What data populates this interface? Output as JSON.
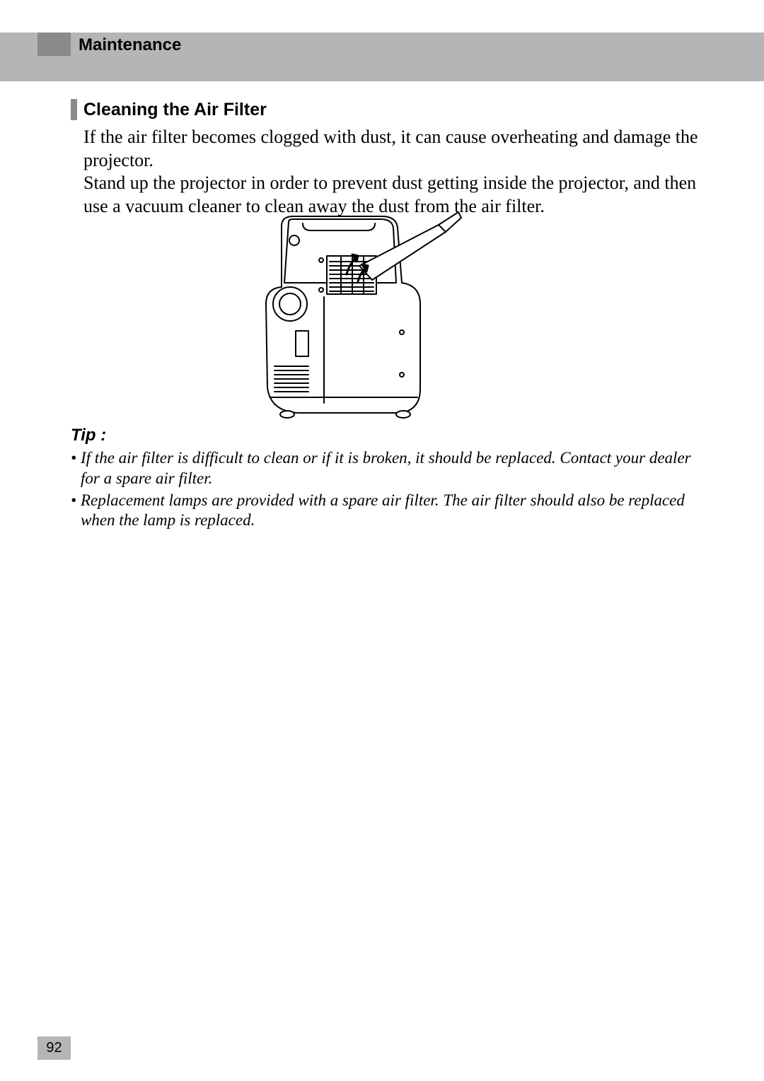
{
  "header": {
    "title": "Maintenance",
    "band_color": "#b5b5b5",
    "accent_color": "#8a8a8a",
    "title_fontsize": 24
  },
  "section": {
    "title": "Cleaning the Air Filter",
    "bar_color": "#8a8a8a",
    "title_fontsize": 25
  },
  "body": {
    "text": "If the air filter becomes clogged with dust, it can cause overheating and damage the projector.\nStand up the projector in order to prevent dust getting inside the projector, and then use a vacuum cleaner to clean away the dust from the air filter.",
    "fontsize": 26
  },
  "illustration": {
    "description": "projector-air-filter-vacuum-diagram",
    "stroke": "#000000",
    "fill": "#ffffff"
  },
  "tip": {
    "label": "Tip :",
    "label_fontsize": 24,
    "items": [
      "If the air filter is difficult to clean or if it is broken, it should be replaced. Contact your dealer for a spare air filter.",
      "Replacement lamps are provided with a spare air filter. The air filter should also be replaced when the lamp is replaced."
    ],
    "fontsize": 23
  },
  "page_number": {
    "value": "92",
    "bg": "#b5b5b5",
    "fontsize": 20
  }
}
